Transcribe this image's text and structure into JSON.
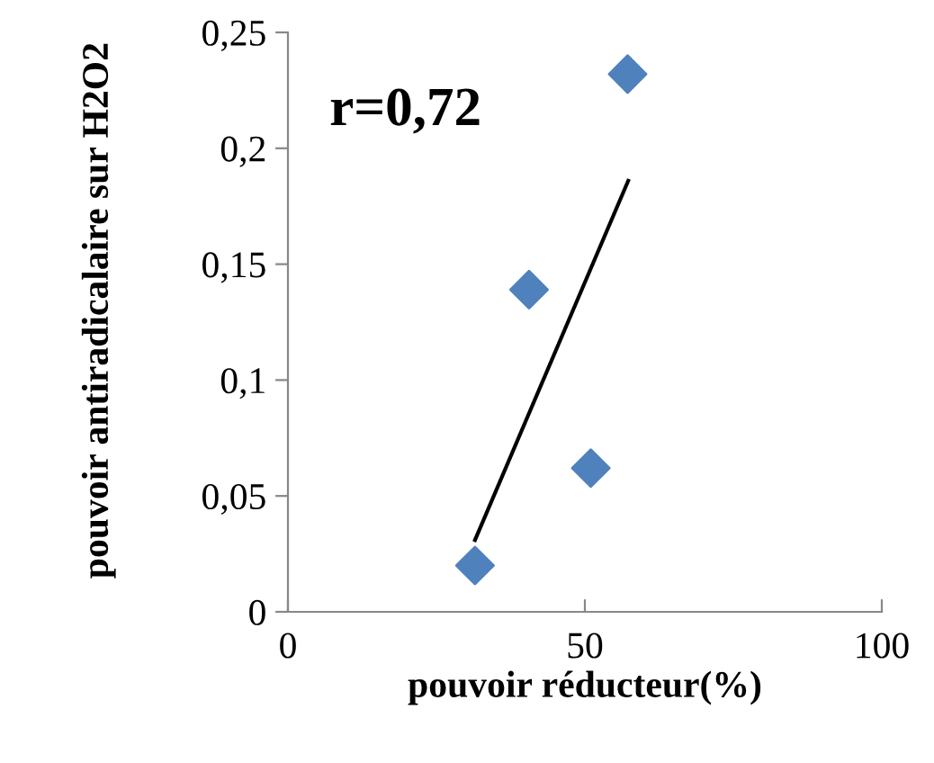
{
  "chart_data": {
    "type": "scatter",
    "xlabel": "pouvoir réducteur(%)",
    "ylabel": "pouvoir antiradicalaire sur H2O2",
    "xlim": [
      0,
      100
    ],
    "xticks": [
      0,
      50,
      100
    ],
    "ylim": [
      0,
      0.25
    ],
    "yticks": [
      {
        "value": 0,
        "label": "0"
      },
      {
        "value": 0.05,
        "label": "0,05"
      },
      {
        "value": 0.1,
        "label": "0,1"
      },
      {
        "value": 0.15,
        "label": "0,15"
      },
      {
        "value": 0.2,
        "label": "0,2"
      },
      {
        "value": 0.25,
        "label": "0,25"
      }
    ],
    "grid": false,
    "legend": false,
    "annotations": [
      "r=0,72"
    ],
    "series": [
      {
        "marker": "diamond",
        "color": "#4f81bd",
        "x": [
          31.5,
          40.6,
          51.0,
          57.2
        ],
        "values": [
          0.02,
          0.139,
          0.062,
          0.232
        ]
      },
      {
        "type": "line",
        "marker": "none",
        "color": "#000000",
        "x": [
          31.5,
          57.3
        ],
        "values": [
          0.031,
          0.186
        ]
      }
    ]
  }
}
